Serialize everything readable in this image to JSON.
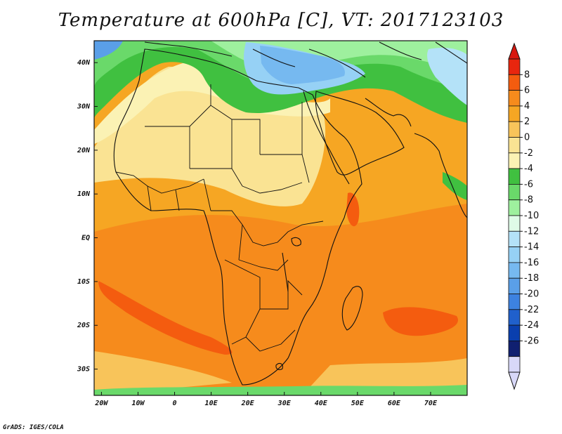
{
  "title": "Temperature at 600hPa [C], VT: 2017123103",
  "credit": "GrADS: IGES/COLA",
  "map": {
    "lon_range": [
      -22,
      80
    ],
    "lat_range": [
      -36,
      45
    ],
    "lon_ticks": [
      {
        "value": -20,
        "label": "20W"
      },
      {
        "value": -10,
        "label": "10W"
      },
      {
        "value": 0,
        "label": "0"
      },
      {
        "value": 10,
        "label": "10E"
      },
      {
        "value": 20,
        "label": "20E"
      },
      {
        "value": 30,
        "label": "30E"
      },
      {
        "value": 40,
        "label": "40E"
      },
      {
        "value": 50,
        "label": "50E"
      },
      {
        "value": 60,
        "label": "60E"
      },
      {
        "value": 70,
        "label": "70E"
      }
    ],
    "lat_ticks": [
      {
        "value": 40,
        "label": "40N"
      },
      {
        "value": 30,
        "label": "30N"
      },
      {
        "value": 20,
        "label": "20N"
      },
      {
        "value": 10,
        "label": "10N"
      },
      {
        "value": 0,
        "label": "EQ"
      },
      {
        "value": -10,
        "label": "10S"
      },
      {
        "value": -20,
        "label": "20S"
      },
      {
        "value": -30,
        "label": "30S"
      }
    ]
  },
  "colorbar": {
    "labels": [
      "8",
      "6",
      "4",
      "2",
      "0",
      "-2",
      "-4",
      "-6",
      "-8",
      "-10",
      "-12",
      "-14",
      "-16",
      "-18",
      "-20",
      "-22",
      "-24",
      "-26"
    ],
    "colors": [
      "#e8260e",
      "#f45c0f",
      "#f68b1c",
      "#f6a623",
      "#f8c45a",
      "#fae393",
      "#fbf2b4",
      "#40c040",
      "#6ad96a",
      "#9ef09e",
      "#dffbe7",
      "#b4e2f8",
      "#96d1f5",
      "#76b9f0",
      "#5a9fe8",
      "#3d82e0",
      "#2060cc",
      "#0a3fae",
      "#102070",
      "#d8d8f8"
    ],
    "top_arrow_color": "#d81810",
    "bottom_arrow_color": "#d8d8f8"
  }
}
